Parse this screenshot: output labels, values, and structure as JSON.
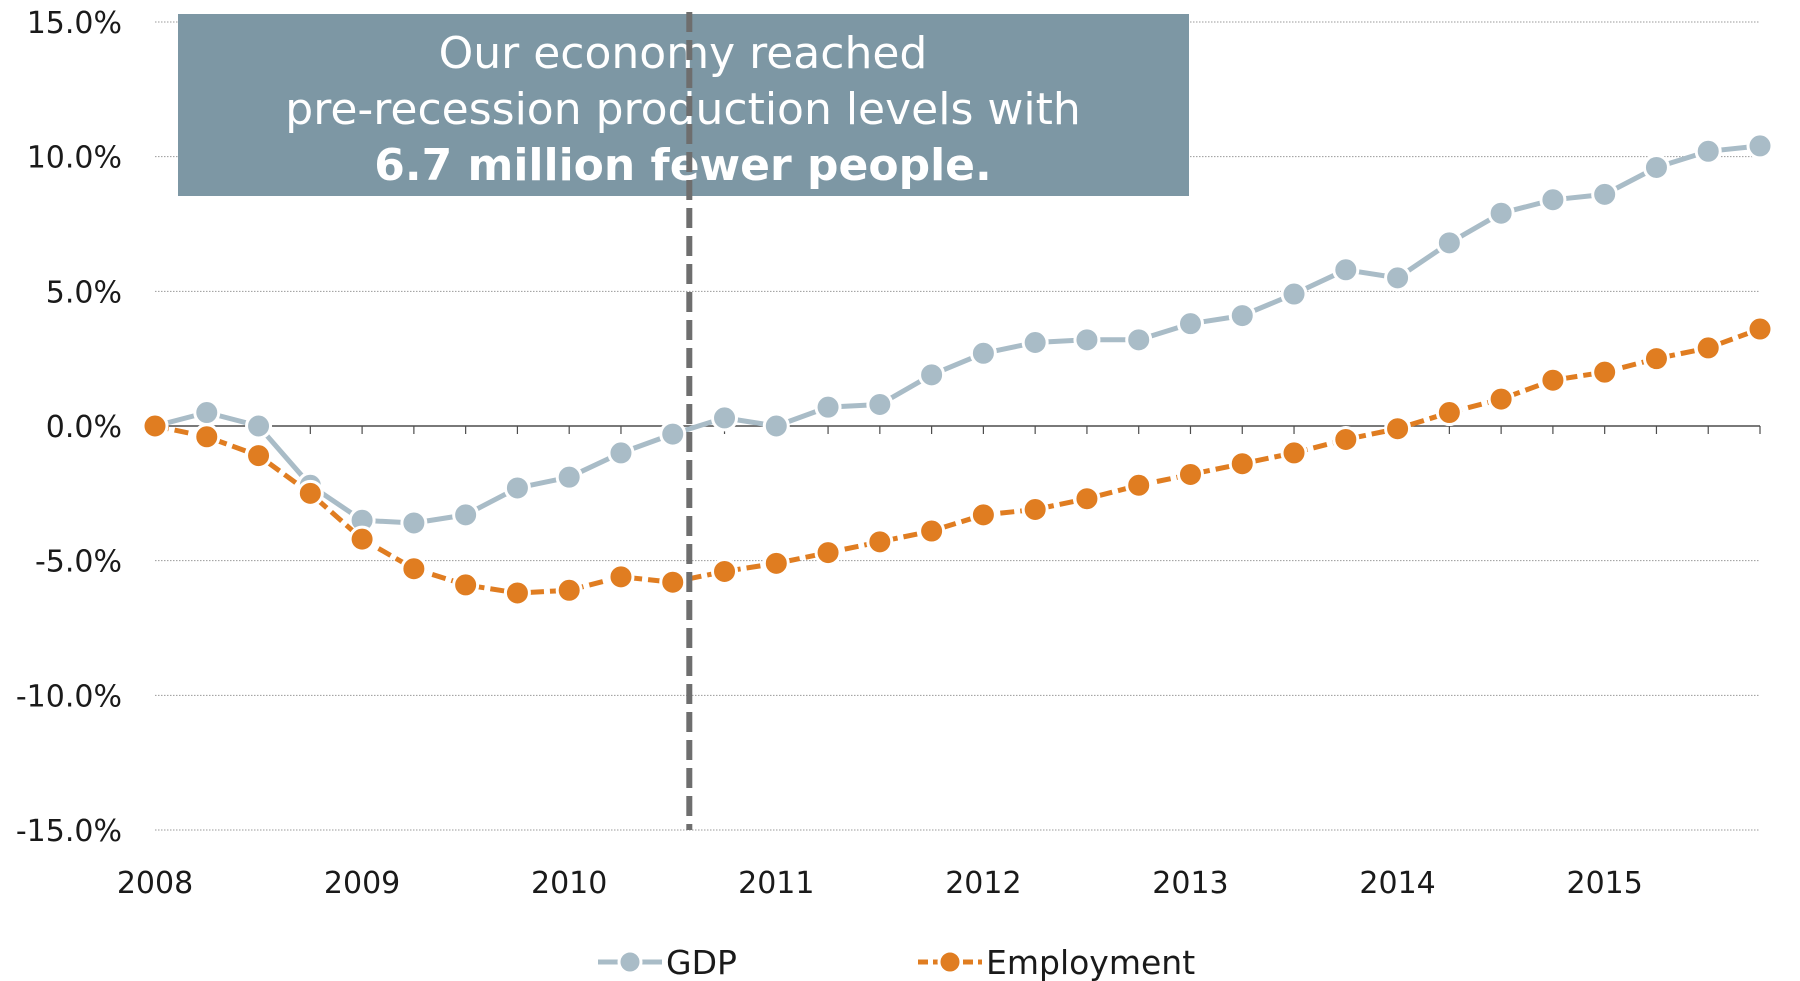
{
  "chart_data": {
    "type": "line",
    "annotation": {
      "line1": "Our economy reached",
      "line2": "pre-recession production levels with",
      "line3": "6.7 million fewer people.",
      "box_color": "#7d97a4",
      "marker_x": 2010.58
    },
    "ylim": [
      -15,
      15
    ],
    "yticks": [
      15,
      10,
      5,
      0,
      -5,
      -10,
      -15
    ],
    "ytick_labels": [
      "15.0%",
      "10.0%",
      "5.0%",
      "0.0%",
      "-5.0%",
      "-10.0%",
      "-15.0%"
    ],
    "xlim": [
      2008,
      2015.75
    ],
    "xticks": [
      2008,
      2009,
      2010,
      2011,
      2012,
      2013,
      2014,
      2015
    ],
    "xtick_labels": [
      "2008",
      "2009",
      "2010",
      "2011",
      "2012",
      "2013",
      "2014",
      "2015"
    ],
    "x": [
      2008,
      2008.25,
      2008.5,
      2008.75,
      2009,
      2009.25,
      2009.5,
      2009.75,
      2010,
      2010.25,
      2010.5,
      2010.75,
      2011,
      2011.25,
      2011.5,
      2011.75,
      2012,
      2012.25,
      2012.5,
      2012.75,
      2013,
      2013.25,
      2013.5,
      2013.75,
      2014,
      2014.25,
      2014.5,
      2014.75,
      2015,
      2015.25,
      2015.5,
      2015.75
    ],
    "series": [
      {
        "name": "GDP",
        "color": "#a9bcc7",
        "values": [
          0.0,
          0.5,
          0.0,
          -2.2,
          -3.5,
          -3.6,
          -3.3,
          -2.3,
          -1.9,
          -1.0,
          -0.3,
          0.3,
          0.0,
          0.7,
          0.8,
          1.9,
          2.7,
          3.1,
          3.2,
          3.2,
          3.8,
          4.1,
          4.9,
          5.8,
          5.5,
          6.8,
          7.9,
          8.4,
          8.6,
          9.6,
          10.2,
          10.4
        ]
      },
      {
        "name": "Employment",
        "color": "#e07d21",
        "values": [
          0.0,
          -0.4,
          -1.1,
          -2.5,
          -4.2,
          -5.3,
          -5.9,
          -6.2,
          -6.1,
          -5.6,
          -5.8,
          -5.4,
          -5.1,
          -4.7,
          -4.3,
          -3.9,
          -3.3,
          -3.1,
          -2.7,
          -2.2,
          -1.8,
          -1.4,
          -1.0,
          -0.5,
          -0.1,
          0.5,
          1.0,
          1.7,
          2.0,
          2.5,
          2.9,
          3.6
        ]
      }
    ],
    "legend": {
      "position": "bottom"
    },
    "grid": true
  }
}
